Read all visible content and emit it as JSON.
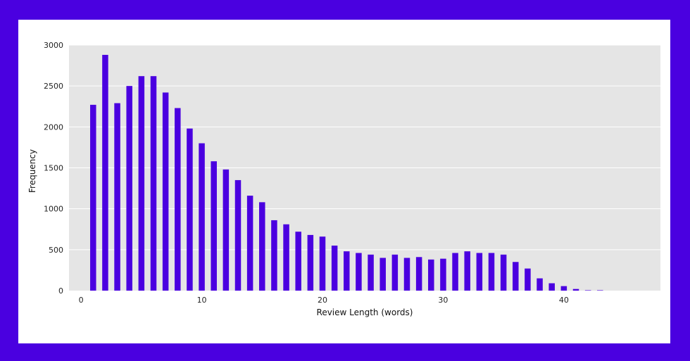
{
  "colors": {
    "frame": "#4a00e0",
    "card": "#ffffff",
    "plot_background": "#e5e5e5",
    "gridline": "#ffffff",
    "bar": "#4a00e0"
  },
  "chart_data": {
    "type": "bar",
    "title": "",
    "xlabel": "Review Length (words)",
    "ylabel": "Frequency",
    "xlim": [
      -1,
      48
    ],
    "ylim": [
      0,
      3000
    ],
    "xticks": [
      0,
      10,
      20,
      30,
      40
    ],
    "yticks": [
      0,
      500,
      1000,
      1500,
      2000,
      2500,
      3000
    ],
    "grid": "horizontal",
    "x": [
      1,
      2,
      3,
      4,
      5,
      6,
      7,
      8,
      9,
      10,
      11,
      12,
      13,
      14,
      15,
      16,
      17,
      18,
      19,
      20,
      21,
      22,
      23,
      24,
      25,
      26,
      27,
      28,
      29,
      30,
      31,
      32,
      33,
      34,
      35,
      36,
      37,
      38,
      39,
      40,
      41,
      42,
      43
    ],
    "values": [
      2270,
      2880,
      2290,
      2500,
      2620,
      2620,
      2420,
      2230,
      1980,
      1800,
      1580,
      1480,
      1350,
      1160,
      1080,
      860,
      810,
      720,
      680,
      660,
      550,
      480,
      460,
      440,
      400,
      440,
      400,
      410,
      380,
      390,
      460,
      480,
      460,
      460,
      440,
      350,
      270,
      150,
      90,
      55,
      20,
      5,
      5
    ]
  }
}
